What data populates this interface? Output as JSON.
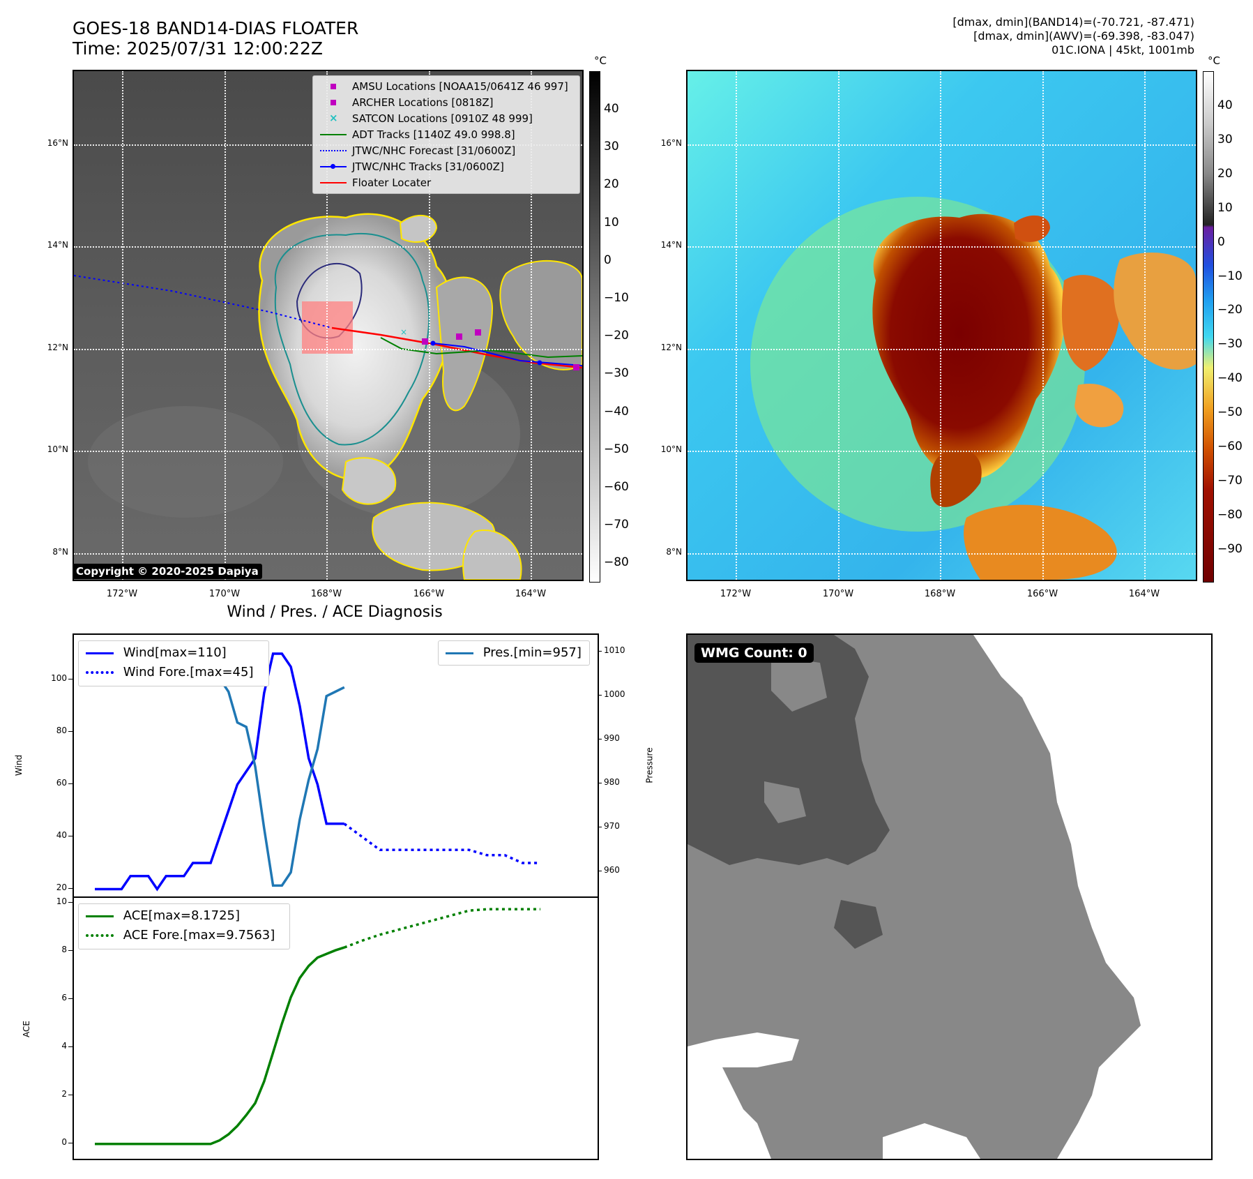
{
  "header": {
    "title_line1": "GOES-18 BAND14-DIAS FLOATER",
    "title_line2": "Time: 2025/07/31 12:00:22Z",
    "right_line1": "[dmax, dmin](BAND14)=(-70.721, -87.471)",
    "right_line2": "[dmax, dmin](AWV)=(-69.398, -83.047)",
    "right_line3": "01C.IONA | 45kt, 1001mb"
  },
  "maps": {
    "lat_labels": [
      "16°N",
      "14°N",
      "12°N",
      "10°N",
      "8°N"
    ],
    "lon_labels": [
      "172°W",
      "170°W",
      "168°W",
      "166°W",
      "164°W"
    ],
    "copyright": "Copyright © 2020-2025 Dapiya",
    "colorbar_left": {
      "unit": "°C",
      "ticks": [
        "40",
        "30",
        "20",
        "10",
        "0",
        "−10",
        "−20",
        "−30",
        "−40",
        "−50",
        "−60",
        "−70",
        "−80"
      ]
    },
    "colorbar_right": {
      "unit": "°C",
      "ticks": [
        "40",
        "30",
        "20",
        "10",
        "0",
        "−10",
        "−20",
        "−30",
        "−40",
        "−50",
        "−60",
        "−70",
        "−80",
        "−90"
      ]
    },
    "legend": [
      {
        "label": "AMSU Locations [NOAA15/0641Z 46 997]",
        "color": "#c000c0",
        "kind": "square"
      },
      {
        "label": "ARCHER Locations [0818Z]",
        "color": "#c000c0",
        "kind": "square"
      },
      {
        "label": "SATCON Locations [0910Z 48 999]",
        "color": "#20c0c0",
        "kind": "x"
      },
      {
        "label": "ADT Tracks [1140Z 49.0 998.8]",
        "color": "#008000",
        "kind": "line"
      },
      {
        "label": "JTWC/NHC Forecast [31/0600Z]",
        "color": "#0000ff",
        "kind": "dotted"
      },
      {
        "label": "JTWC/NHC Tracks [31/0600Z]",
        "color": "#0000ff",
        "kind": "line-dot"
      },
      {
        "label": "Floater Locater",
        "color": "#ff0000",
        "kind": "line"
      }
    ]
  },
  "wmg": {
    "label": "WMG Count: 0"
  },
  "chart_data": [
    {
      "type": "line",
      "title": "Wind / Pres. / ACE Diagnosis",
      "ylabel": "Wind",
      "y2label": "Pressure",
      "ylim": [
        18,
        114
      ],
      "y2lim": [
        955,
        1012
      ],
      "yticks": [
        20,
        40,
        60,
        80,
        100
      ],
      "y2ticks": [
        960,
        970,
        980,
        990,
        1000,
        1010
      ],
      "series": [
        {
          "name": "Wind[max=110]",
          "axis": "left",
          "color": "#0000ff",
          "style": "solid",
          "x": [
            0,
            1,
            2,
            3,
            4,
            5,
            6,
            7,
            8,
            9,
            10,
            11,
            12,
            13,
            14,
            15,
            16,
            17,
            18,
            19,
            20,
            21,
            22,
            23,
            24,
            25,
            26,
            27,
            28
          ],
          "values": [
            20,
            20,
            20,
            20,
            25,
            25,
            25,
            20,
            25,
            25,
            25,
            30,
            30,
            30,
            40,
            50,
            60,
            65,
            70,
            95,
            110,
            110,
            105,
            90,
            70,
            60,
            45,
            45,
            45
          ]
        },
        {
          "name": "Wind Fore.[max=45]",
          "axis": "left",
          "color": "#0000ff",
          "style": "dotted",
          "x": [
            28,
            30,
            32,
            34,
            36,
            38,
            40,
            42,
            44,
            46,
            48,
            50
          ],
          "values": [
            45,
            40,
            35,
            35,
            35,
            35,
            35,
            35,
            33,
            33,
            30,
            30
          ]
        },
        {
          "name": "Pres.[min=957]",
          "axis": "right",
          "color": "#1f77b4",
          "style": "solid",
          "x": [
            0,
            1,
            2,
            3,
            4,
            5,
            6,
            7,
            8,
            9,
            10,
            11,
            12,
            13,
            14,
            15,
            16,
            17,
            18,
            19,
            20,
            21,
            22,
            23,
            24,
            25,
            26,
            27,
            28
          ],
          "values": [
            1010,
            1010,
            1010,
            1009,
            1009,
            1008,
            1008,
            1011,
            1010,
            1010,
            1008,
            1009,
            1008,
            1006,
            1004,
            1001,
            994,
            993,
            984,
            970,
            957,
            957,
            960,
            972,
            981,
            988,
            1000,
            1001,
            1002
          ]
        }
      ]
    },
    {
      "type": "line",
      "ylabel": "ACE",
      "ylim": [
        -0.5,
        10
      ],
      "yticks": [
        0,
        2,
        4,
        6,
        8,
        10
      ],
      "series": [
        {
          "name": "ACE[max=8.1725]",
          "color": "#008000",
          "style": "solid",
          "x": [
            0,
            4,
            8,
            12,
            13,
            14,
            15,
            16,
            17,
            18,
            19,
            20,
            21,
            22,
            23,
            24,
            25,
            26,
            27,
            28
          ],
          "values": [
            0,
            0,
            0,
            0,
            0,
            0.15,
            0.4,
            0.75,
            1.2,
            1.7,
            2.6,
            3.8,
            5.0,
            6.1,
            6.9,
            7.4,
            7.75,
            7.9,
            8.05,
            8.17
          ]
        },
        {
          "name": "ACE Fore.[max=9.7563]",
          "color": "#008000",
          "style": "dotted",
          "x": [
            28,
            30,
            32,
            34,
            36,
            38,
            40,
            42,
            44,
            46,
            48,
            50
          ],
          "values": [
            8.17,
            8.45,
            8.7,
            8.9,
            9.1,
            9.3,
            9.5,
            9.7,
            9.76,
            9.76,
            9.76,
            9.76
          ]
        }
      ]
    }
  ]
}
